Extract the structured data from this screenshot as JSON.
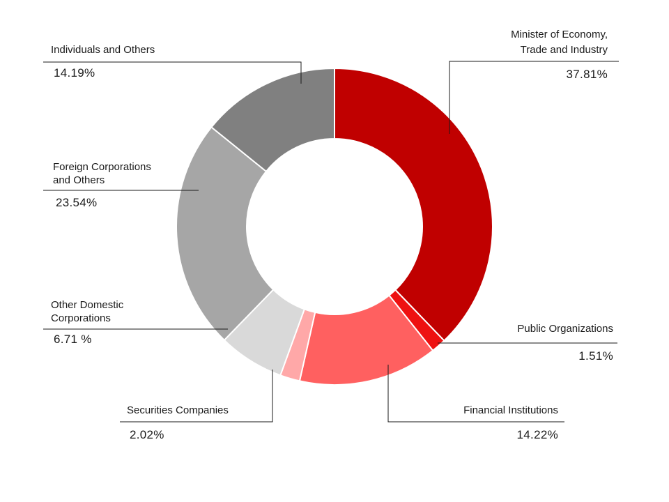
{
  "chart_data": {
    "type": "pie",
    "variant": "donut",
    "title": "",
    "legend": "none",
    "series": [
      {
        "name": "Minister of Economy, Trade and Industry",
        "label_lines": [
          "Minister of Economy,",
          "Trade and Industry"
        ],
        "value": 37.81,
        "value_label": "37.81%",
        "color": "#c00000"
      },
      {
        "name": "Public Organizations",
        "label_lines": [
          "Public Organizations"
        ],
        "value": 1.51,
        "value_label": "1.51%",
        "color": "#ee1111"
      },
      {
        "name": "Financial Institutions",
        "label_lines": [
          "Financial Institutions"
        ],
        "value": 14.22,
        "value_label": "14.22%",
        "color": "#ff6060"
      },
      {
        "name": "Securities Companies",
        "label_lines": [
          "Securities Companies"
        ],
        "value": 2.02,
        "value_label": "2.02%",
        "color": "#ffa8a8"
      },
      {
        "name": "Other Domestic Corporations",
        "label_lines": [
          "Other Domestic",
          "Corporations"
        ],
        "value": 6.71,
        "value_label": "6.71 %",
        "color": "#d9d9d9"
      },
      {
        "name": "Foreign Corporations and Others",
        "label_lines": [
          "Foreign Corporations",
          "and Others"
        ],
        "value": 23.54,
        "value_label": "23.54%",
        "color": "#a6a6a6"
      },
      {
        "name": "Individuals and Others",
        "label_lines": [
          "Individuals and Others"
        ],
        "value": 14.19,
        "value_label": "14.19%",
        "color": "#808080"
      }
    ]
  }
}
